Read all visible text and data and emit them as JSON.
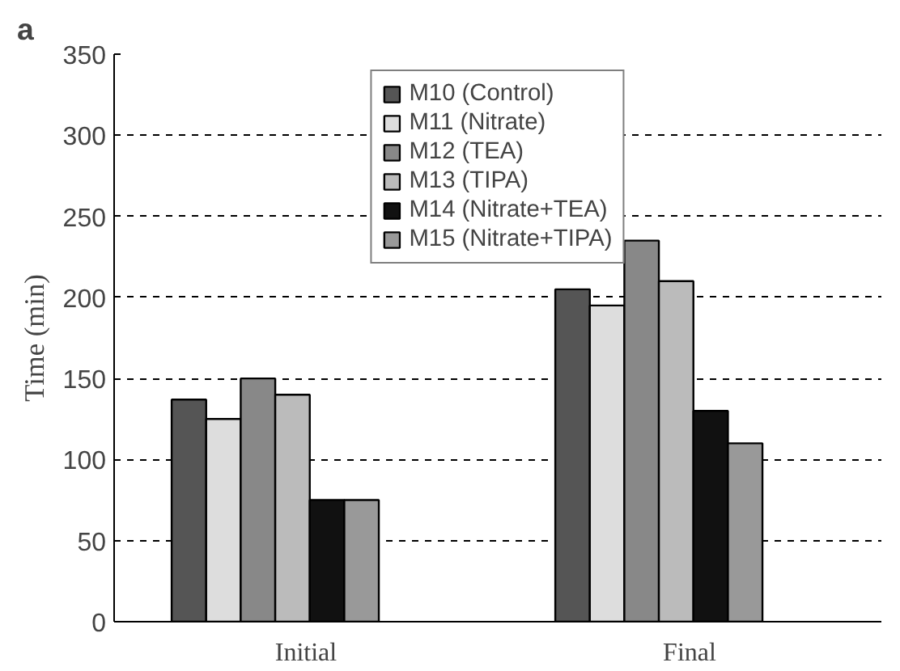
{
  "chart_data": {
    "type": "bar",
    "ylabel": "Time (min)",
    "annotations": [
      "a"
    ],
    "categories": [
      "Initial",
      "Final"
    ],
    "series": [
      {
        "name": "M10 (Control)",
        "color": "#555555",
        "values": [
          137,
          205
        ]
      },
      {
        "name": "M11 (Nitrate)",
        "color": "#dddddd",
        "values": [
          125,
          195
        ]
      },
      {
        "name": "M12 (TEA)",
        "color": "#888888",
        "values": [
          150,
          235
        ]
      },
      {
        "name": "M13 (TIPA)",
        "color": "#bbbbbb",
        "values": [
          140,
          210
        ]
      },
      {
        "name": "M14 (Nitrate+TEA)",
        "color": "#111111",
        "values": [
          75,
          130
        ]
      },
      {
        "name": "M15 (Nitrate+TIPA)",
        "color": "#999999",
        "values": [
          75,
          110
        ]
      }
    ],
    "ylim": [
      0,
      350
    ],
    "yticks": [
      0,
      50,
      100,
      150,
      200,
      250,
      300,
      350
    ],
    "grid": "y",
    "legend": "top"
  }
}
